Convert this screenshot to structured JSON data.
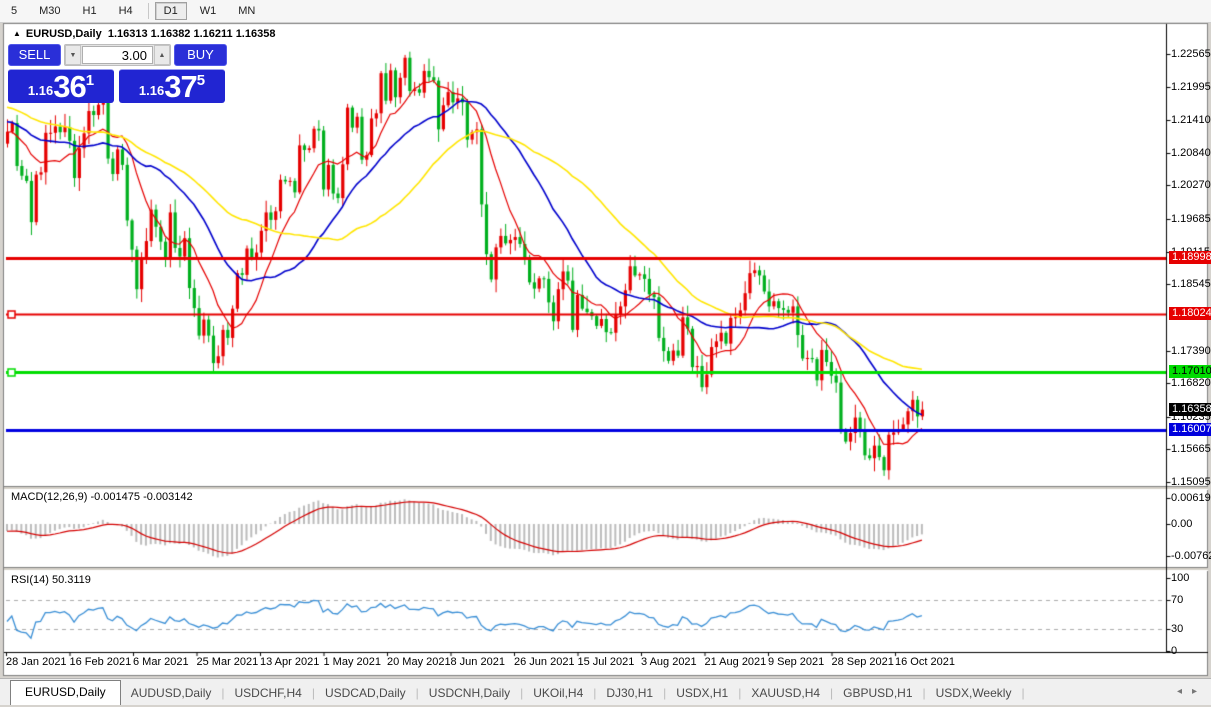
{
  "toolbar": {
    "items": [
      "5",
      "M30",
      "H1",
      "H4",
      "D1",
      "W1",
      "MN"
    ],
    "active": "D1"
  },
  "chart_header": {
    "symbol": "EURUSD,Daily",
    "ohlc": "1.16313 1.16382 1.16211 1.16358"
  },
  "quote_panel": {
    "sell_label": "SELL",
    "buy_label": "BUY",
    "volume": "3.00",
    "bid": {
      "prefix": "1.16",
      "big": "36",
      "sup": "1"
    },
    "ask": {
      "prefix": "1.16",
      "big": "37",
      "sup": "5"
    }
  },
  "indicator_labels": {
    "macd": "MACD(12,26,9) -0.001475 -0.003142",
    "rsi": "RSI(14) 50.3119"
  },
  "tabs": [
    "EURUSD,Daily",
    "AUDUSD,Daily",
    "USDCHF,H4",
    "USDCAD,Daily",
    "USDCNH,Daily",
    "UKOil,H4",
    "DJ30,H1",
    "USDX,H1",
    "XAUUSD,H4",
    "GBPUSD,H1",
    "USDX,Weekly"
  ],
  "date_axis": [
    "28 Jan 2021",
    "16 Feb 2021",
    "6 Mar 2021",
    "25 Mar 2021",
    "13 Apr 2021",
    "1 May 2021",
    "20 May 2021",
    "8 Jun 2021",
    "26 Jun 2021",
    "15 Jul 2021",
    "3 Aug 2021",
    "21 Aug 2021",
    "9 Sep 2021",
    "28 Sep 2021",
    "16 Oct 2021"
  ],
  "chart_data": {
    "type": "candlestick",
    "symbol": "EURUSD",
    "timeframe": "Daily",
    "bull_color": "#E60000",
    "bear_color": "#00B01E",
    "closes": [
      1.2121,
      1.2136,
      1.2061,
      1.2044,
      1.2035,
      1.1963,
      1.2046,
      1.205,
      1.2119,
      1.2119,
      1.213,
      1.212,
      1.2129,
      1.2105,
      1.204,
      1.2092,
      1.2118,
      1.2157,
      1.215,
      1.2168,
      1.2175,
      1.2074,
      1.2047,
      1.209,
      1.2063,
      1.1966,
      1.1915,
      1.1846,
      1.1899,
      1.193,
      1.1985,
      1.1955,
      1.1929,
      1.19,
      1.198,
      1.1918,
      1.1903,
      1.1935,
      1.1848,
      1.1813,
      1.1765,
      1.1793,
      1.1765,
      1.1717,
      1.1729,
      1.1775,
      1.1761,
      1.1812,
      1.1874,
      1.1871,
      1.1917,
      1.1899,
      1.191,
      1.1948,
      1.198,
      1.1967,
      1.1982,
      1.2037,
      1.2034,
      1.2035,
      1.2015,
      1.2097,
      1.2089,
      1.2092,
      1.2126,
      1.2123,
      1.202,
      1.2063,
      1.2013,
      1.2005,
      1.2064,
      1.2163,
      1.2128,
      1.2147,
      1.2072,
      1.208,
      1.2144,
      1.2153,
      1.2223,
      1.2175,
      1.2228,
      1.2181,
      1.2215,
      1.225,
      1.2192,
      1.2195,
      1.2189,
      1.2227,
      1.2216,
      1.221,
      1.2125,
      1.2167,
      1.219,
      1.2172,
      1.2179,
      1.2172,
      1.2107,
      1.212,
      1.2125,
      1.1994,
      1.1907,
      1.1863,
      1.1919,
      1.1939,
      1.1926,
      1.1932,
      1.1937,
      1.1925,
      1.1899,
      1.1858,
      1.1847,
      1.1865,
      1.1864,
      1.1823,
      1.179,
      1.1846,
      1.1877,
      1.1861,
      1.1775,
      1.1836,
      1.1812,
      1.1806,
      1.1799,
      1.1782,
      1.1794,
      1.1771,
      1.177,
      1.1802,
      1.1816,
      1.1844,
      1.1886,
      1.187,
      1.1872,
      1.1864,
      1.1837,
      1.1832,
      1.1761,
      1.1738,
      1.1721,
      1.1739,
      1.173,
      1.1797,
      1.1777,
      1.171,
      1.1712,
      1.1675,
      1.1697,
      1.1745,
      1.1755,
      1.177,
      1.1751,
      1.1796,
      1.1797,
      1.1809,
      1.1839,
      1.1874,
      1.1879,
      1.187,
      1.1842,
      1.1816,
      1.1825,
      1.1813,
      1.181,
      1.1805,
      1.1816,
      1.1766,
      1.1725,
      1.1726,
      1.1724,
      1.1687,
      1.174,
      1.1719,
      1.1695,
      1.1683,
      1.1597,
      1.158,
      1.1595,
      1.1622,
      1.1598,
      1.1556,
      1.1551,
      1.1573,
      1.1553,
      1.153,
      1.1592,
      1.1596,
      1.1601,
      1.161,
      1.1633,
      1.1653,
      1.1624,
      1.16358
    ],
    "moving_averages": [
      {
        "period": 10,
        "color": "#E60000"
      },
      {
        "period": 25,
        "color": "#0000CD"
      },
      {
        "period": 45,
        "color": "#FFE600"
      }
    ],
    "levels": [
      {
        "price": 1.18998,
        "text": "1.18998",
        "color": "#E60000",
        "width": 3,
        "handle": false,
        "label_bg": "#E60000",
        "label_fg": "#FFFFFF"
      },
      {
        "price": 1.18024,
        "text": "1.18024",
        "color": "#E60000",
        "width": 2,
        "handle": true,
        "label_bg": "#E60000",
        "label_fg": "#FFFFFF"
      },
      {
        "price": 1.1701,
        "text": "1.17010",
        "color": "#00DD00",
        "width": 3,
        "handle": true,
        "label_bg": "#00DD00",
        "label_fg": "#000000"
      },
      {
        "price": 1.16007,
        "text": "1.16007",
        "color": "#0000E0",
        "width": 3,
        "handle": false,
        "label_bg": "#0000DD",
        "label_fg": "#FFFFFF"
      }
    ],
    "current_price": {
      "value": 1.16358,
      "text": "1.16358",
      "label_bg": "#000000",
      "label_fg": "#FFFFFF"
    },
    "price_ticks": [
      1.22565,
      1.21995,
      1.2141,
      1.2084,
      1.2027,
      1.19685,
      1.19115,
      1.18545,
      1.1739,
      1.1682,
      1.16235,
      1.15665,
      1.15095
    ],
    "macd": {
      "fast": 12,
      "slow": 26,
      "signal": 9,
      "main_value": -0.001475,
      "signal_value": -0.003142,
      "axis": [
        {
          "text": "0.006193",
          "value": 0.006193
        },
        {
          "text": "0.00",
          "value": 0
        },
        {
          "text": "-0.007621",
          "value": -0.007621
        }
      ],
      "bar_color": "#BCBCBC",
      "line_color": "#D40000"
    },
    "rsi": {
      "period": 14,
      "value": 50.3119,
      "axis": [
        {
          "text": "100",
          "value": 100
        },
        {
          "text": "70",
          "value": 70
        },
        {
          "text": "30",
          "value": 30
        },
        {
          "text": "0",
          "value": 0
        }
      ],
      "guides": [
        70,
        30
      ],
      "color": "#3A8FD6"
    }
  }
}
